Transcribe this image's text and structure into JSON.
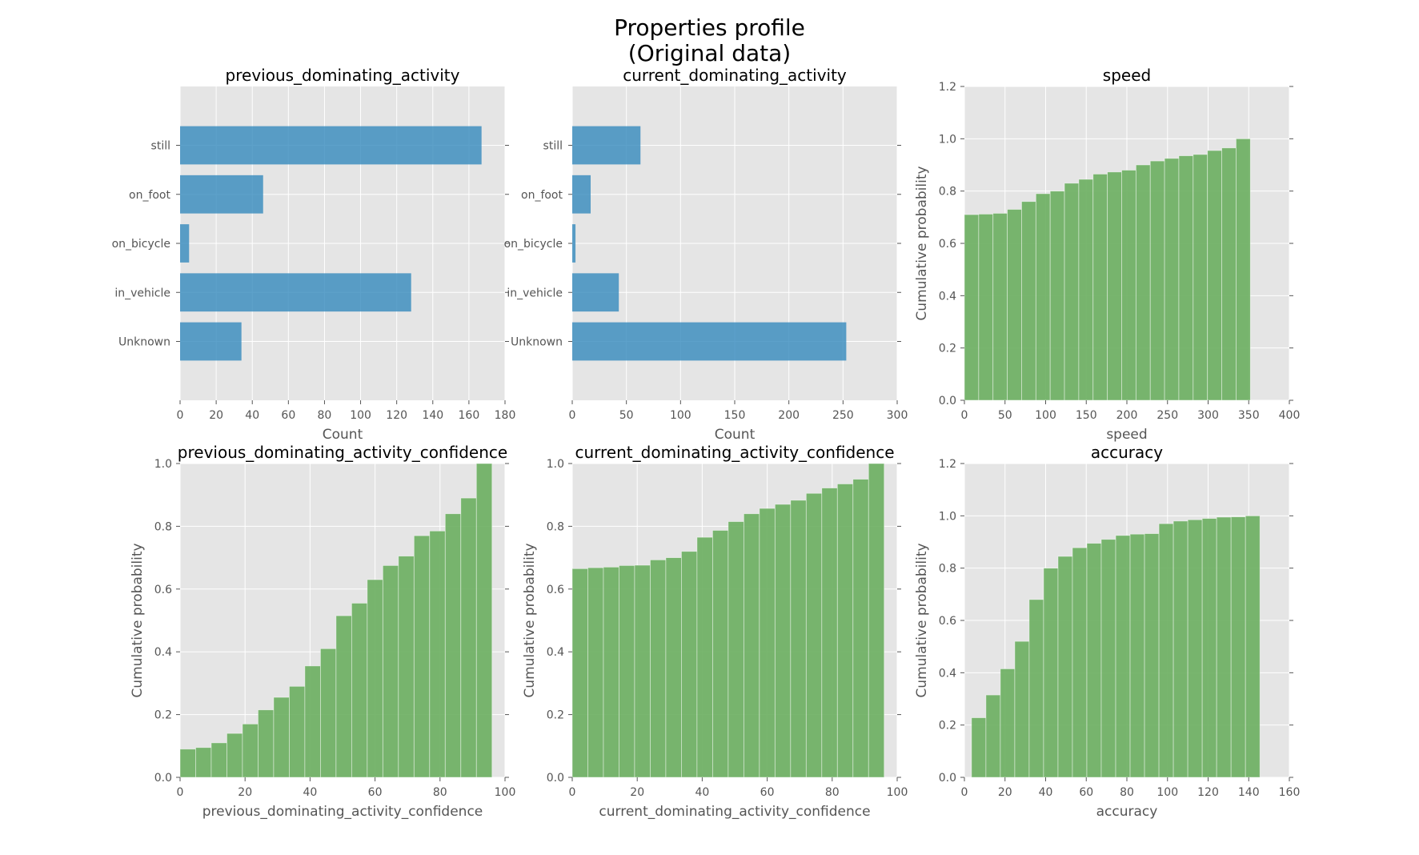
{
  "figure": {
    "title_line1": "Properties profile",
    "title_line2": "(Original data)"
  },
  "colors": {
    "bar_blue": "#348ABD",
    "bar_green": "#6AAE5F",
    "panel_bg": "#E5E5E5",
    "grid": "#FFFFFF"
  },
  "chart_data": [
    {
      "type": "bar",
      "orientation": "horizontal",
      "title": "previous_dominating_activity",
      "xlabel": "Count",
      "ylabel": "",
      "categories": [
        "still",
        "on_foot",
        "on_bicycle",
        "in_vehicle",
        "Unknown"
      ],
      "values": [
        167,
        46,
        5,
        128,
        34
      ],
      "xlim": [
        0,
        180
      ],
      "xticks": [
        0,
        20,
        40,
        60,
        80,
        100,
        120,
        140,
        160,
        180
      ],
      "grid": true
    },
    {
      "type": "bar",
      "orientation": "horizontal",
      "title": "current_dominating_activity",
      "xlabel": "Count",
      "ylabel": "",
      "categories": [
        "still",
        "on_foot",
        "on_bicycle",
        "in_vehicle",
        "Unknown"
      ],
      "values": [
        63,
        17,
        3,
        43,
        253
      ],
      "xlim": [
        0,
        300
      ],
      "xticks": [
        0,
        50,
        100,
        150,
        200,
        250,
        300
      ],
      "grid": true
    },
    {
      "type": "bar",
      "orientation": "histogram",
      "title": "speed",
      "xlabel": "speed",
      "ylabel": "Cumulative probability",
      "bin_start": 0,
      "bin_width": 17.6,
      "values": [
        0.71,
        0.712,
        0.715,
        0.73,
        0.76,
        0.79,
        0.8,
        0.83,
        0.845,
        0.865,
        0.873,
        0.88,
        0.9,
        0.915,
        0.925,
        0.935,
        0.94,
        0.955,
        0.965,
        1.0
      ],
      "xlim": [
        0,
        400
      ],
      "xticks": [
        0,
        50,
        100,
        150,
        200,
        250,
        300,
        350,
        400
      ],
      "ylim": [
        0,
        1.2
      ],
      "yticks": [
        0.0,
        0.2,
        0.4,
        0.6,
        0.8,
        1.0,
        1.2
      ],
      "grid": true
    },
    {
      "type": "bar",
      "orientation": "histogram",
      "title": "previous_dominating_activity_confidence",
      "xlabel": "previous_dominating_activity_confidence",
      "ylabel": "Cumulative probability",
      "bin_start": 0,
      "bin_width": 4.8,
      "values": [
        0.09,
        0.095,
        0.11,
        0.14,
        0.17,
        0.215,
        0.255,
        0.29,
        0.355,
        0.41,
        0.515,
        0.555,
        0.63,
        0.675,
        0.705,
        0.77,
        0.785,
        0.84,
        0.89,
        1.0
      ],
      "xlim": [
        0,
        100
      ],
      "xticks": [
        0,
        20,
        40,
        60,
        80,
        100
      ],
      "ylim": [
        0,
        1.0
      ],
      "yticks": [
        0.0,
        0.2,
        0.4,
        0.6,
        0.8,
        1.0
      ],
      "grid": true
    },
    {
      "type": "bar",
      "orientation": "histogram",
      "title": "current_dominating_activity_confidence",
      "xlabel": "current_dominating_activity_confidence",
      "ylabel": "Cumulative probability",
      "bin_start": 0,
      "bin_width": 4.8,
      "values": [
        0.665,
        0.668,
        0.67,
        0.675,
        0.676,
        0.693,
        0.7,
        0.72,
        0.765,
        0.787,
        0.815,
        0.84,
        0.857,
        0.87,
        0.883,
        0.905,
        0.922,
        0.935,
        0.95,
        1.0
      ],
      "xlim": [
        0,
        100
      ],
      "xticks": [
        0,
        20,
        40,
        60,
        80,
        100
      ],
      "ylim": [
        0,
        1.0
      ],
      "yticks": [
        0.0,
        0.2,
        0.4,
        0.6,
        0.8,
        1.0
      ],
      "grid": true
    },
    {
      "type": "bar",
      "orientation": "histogram",
      "title": "accuracy",
      "xlabel": "accuracy",
      "ylabel": "Cumulative probability",
      "bin_start": 3.5,
      "bin_width": 7.1,
      "values": [
        0.228,
        0.315,
        0.415,
        0.52,
        0.68,
        0.8,
        0.845,
        0.878,
        0.895,
        0.91,
        0.925,
        0.93,
        0.932,
        0.97,
        0.98,
        0.985,
        0.99,
        0.995,
        0.996,
        1.0
      ],
      "xlim": [
        0,
        160
      ],
      "xticks": [
        0,
        20,
        40,
        60,
        80,
        100,
        120,
        140,
        160
      ],
      "ylim": [
        0,
        1.2
      ],
      "yticks": [
        0.0,
        0.2,
        0.4,
        0.6,
        0.8,
        1.0,
        1.2
      ],
      "grid": true
    }
  ]
}
